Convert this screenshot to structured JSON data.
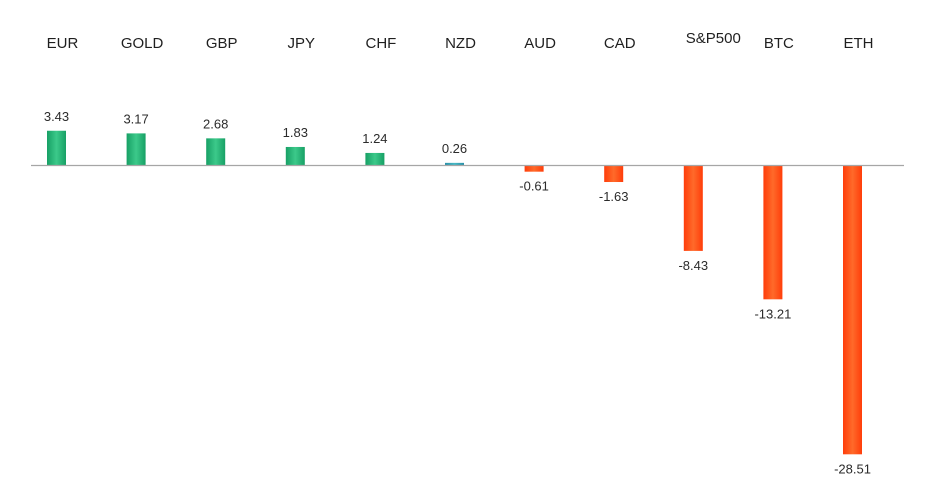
{
  "chart_data": {
    "type": "bar",
    "title": "",
    "xlabel": "",
    "ylabel": "",
    "categories": [
      "EUR",
      "GOLD",
      "GBP",
      "JPY",
      "CHF",
      "NZD",
      "AUD",
      "CAD",
      "S&P500",
      "BTC",
      "ETH"
    ],
    "values": [
      3.43,
      3.17,
      2.68,
      1.83,
      1.24,
      0.26,
      -0.61,
      -1.63,
      -8.43,
      -13.21,
      -28.51
    ],
    "value_labels": [
      "3.43",
      "3.17",
      "2.68",
      "1.83",
      "1.24",
      "0.26",
      "-0.61",
      "-1.63",
      "-8.43",
      "-13.21",
      "-28.51"
    ],
    "ylim": [
      -28.51,
      3.43
    ],
    "grid": false,
    "legend": "none",
    "category_label_position": "top",
    "colors": {
      "positive": "#1fae6f",
      "positive_light": "#3cc98a",
      "positive_small": "#2f9fb0",
      "negative": "#ff4310",
      "negative_light": "#ff6a2a",
      "axis": "#a6a6a6"
    }
  }
}
